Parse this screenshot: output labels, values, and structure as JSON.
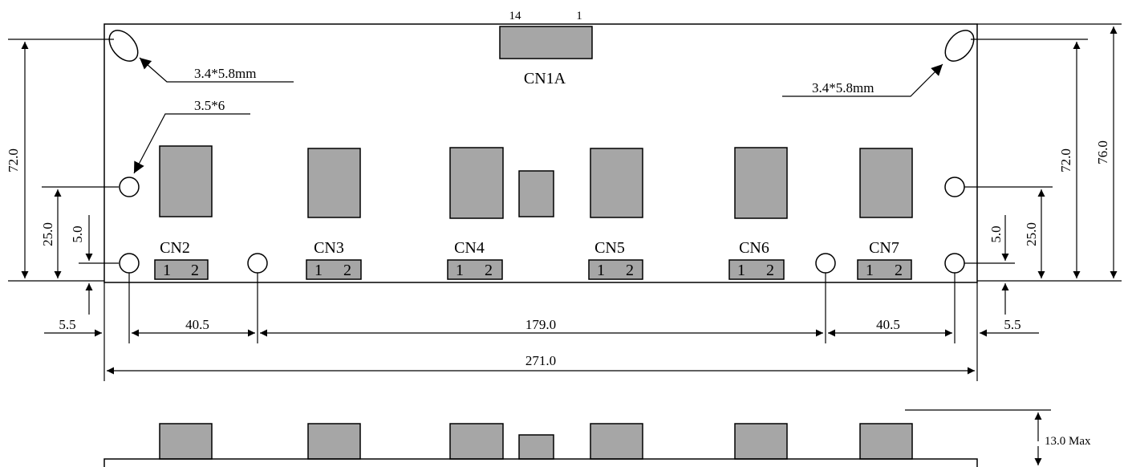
{
  "colors": {
    "component": "#a6a6a6",
    "line": "#000000",
    "background": "#ffffff"
  },
  "top_connector": {
    "label": "CN1A",
    "pin_left": "14",
    "pin_right": "1"
  },
  "mount_notes": {
    "slot_left": "3.4*5.8mm",
    "slot_right": "3.4*5.8mm",
    "hole": "3.5*6"
  },
  "connectors": [
    {
      "label": "CN2",
      "pin1": "1",
      "pin2": "2"
    },
    {
      "label": "CN3",
      "pin1": "1",
      "pin2": "2"
    },
    {
      "label": "CN4",
      "pin1": "1",
      "pin2": "2"
    },
    {
      "label": "CN5",
      "pin1": "1",
      "pin2": "2"
    },
    {
      "label": "CN6",
      "pin1": "1",
      "pin2": "2"
    },
    {
      "label": "CN7",
      "pin1": "1",
      "pin2": "2"
    }
  ],
  "dimensions": {
    "left_height": "72.0",
    "left_hole_height": "25.0",
    "left_hole_offset": "5.0",
    "right_height": "72.0",
    "right_total_height": "76.0",
    "right_hole_height": "25.0",
    "right_hole_offset": "5.0",
    "left_margin": "5.5",
    "left_span": "40.5",
    "middle_span": "179.0",
    "right_span": "40.5",
    "right_margin": "5.5",
    "total_width": "271.0",
    "max_height": "13.0 Max"
  }
}
